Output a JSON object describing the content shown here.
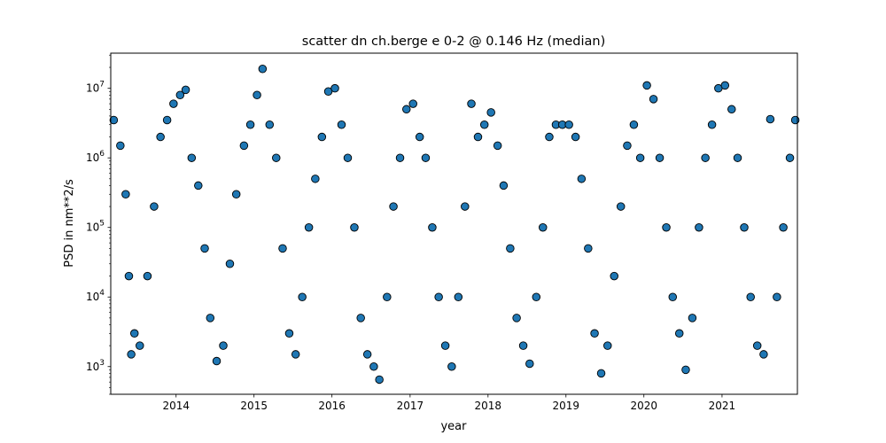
{
  "chart_data": {
    "type": "scatter",
    "title": "scatter dn ch.berge e 0-2 @ 0.146 Hz (median)",
    "xlabel": "year",
    "ylabel": "PSD in nm**2/s",
    "xlim": [
      "2013-03-01",
      "2021-12-20"
    ],
    "ylim": [
      400,
      32000000
    ],
    "yscale": "log",
    "grid": false,
    "legend": "none",
    "x_ticks": [
      "2014",
      "2015",
      "2016",
      "2017",
      "2018",
      "2019",
      "2020",
      "2021"
    ],
    "y_ticks": [
      {
        "value": 1000,
        "base": "10",
        "exp": "3"
      },
      {
        "value": 10000,
        "base": "10",
        "exp": "4"
      },
      {
        "value": 100000,
        "base": "10",
        "exp": "5"
      },
      {
        "value": 1000000,
        "base": "10",
        "exp": "6"
      },
      {
        "value": 10000000,
        "base": "10",
        "exp": "7"
      }
    ],
    "marker_color": "#1f77b4",
    "marker_edge_color": "#000000",
    "series": [
      {
        "points": [
          [
            "2013-03-15",
            3500000.0
          ],
          [
            "2013-04-15",
            1500000.0
          ],
          [
            "2013-05-10",
            300000.0
          ],
          [
            "2013-05-25",
            20000.0
          ],
          [
            "2013-06-05",
            1500.0
          ],
          [
            "2013-06-20",
            3000.0
          ],
          [
            "2013-07-15",
            2000.0
          ],
          [
            "2013-08-20",
            20000.0
          ],
          [
            "2013-09-20",
            200000.0
          ],
          [
            "2013-10-20",
            2000000.0
          ],
          [
            "2013-11-20",
            3500000.0
          ],
          [
            "2013-12-20",
            6000000.0
          ],
          [
            "2014-01-20",
            8000000.0
          ],
          [
            "2014-02-15",
            9500000.0
          ],
          [
            "2014-03-15",
            1000000.0
          ],
          [
            "2014-04-15",
            400000.0
          ],
          [
            "2014-05-15",
            50000.0
          ],
          [
            "2014-06-10",
            5000.0
          ],
          [
            "2014-07-10",
            1200.0
          ],
          [
            "2014-08-10",
            2000.0
          ],
          [
            "2014-09-10",
            30000.0
          ],
          [
            "2014-10-10",
            300000.0
          ],
          [
            "2014-11-15",
            1500000.0
          ],
          [
            "2014-12-15",
            3000000.0
          ],
          [
            "2015-01-15",
            8000000.0
          ],
          [
            "2015-02-10",
            19000000.0
          ],
          [
            "2015-03-15",
            3000000.0
          ],
          [
            "2015-04-15",
            1000000.0
          ],
          [
            "2015-05-15",
            50000.0
          ],
          [
            "2015-06-15",
            3000.0
          ],
          [
            "2015-07-15",
            1500.0
          ],
          [
            "2015-08-15",
            10000.0
          ],
          [
            "2015-09-15",
            100000.0
          ],
          [
            "2015-10-15",
            500000.0
          ],
          [
            "2015-11-15",
            2000000.0
          ],
          [
            "2015-12-15",
            9000000.0
          ],
          [
            "2016-01-15",
            10000000.0
          ],
          [
            "2016-02-15",
            3000000.0
          ],
          [
            "2016-03-15",
            1000000.0
          ],
          [
            "2016-04-15",
            100000.0
          ],
          [
            "2016-05-15",
            5000.0
          ],
          [
            "2016-06-15",
            1500.0
          ],
          [
            "2016-07-15",
            1000.0
          ],
          [
            "2016-08-10",
            650.0
          ],
          [
            "2016-09-15",
            10000.0
          ],
          [
            "2016-10-15",
            200000.0
          ],
          [
            "2016-11-15",
            1000000.0
          ],
          [
            "2016-12-15",
            5000000.0
          ],
          [
            "2017-01-15",
            6000000.0
          ],
          [
            "2017-02-15",
            2000000.0
          ],
          [
            "2017-03-15",
            1000000.0
          ],
          [
            "2017-04-15",
            100000.0
          ],
          [
            "2017-05-15",
            10000.0
          ],
          [
            "2017-06-15",
            2000.0
          ],
          [
            "2017-07-15",
            1000.0
          ],
          [
            "2017-08-15",
            10000.0
          ],
          [
            "2017-09-15",
            200000.0
          ],
          [
            "2017-10-15",
            6000000.0
          ],
          [
            "2017-11-15",
            2000000.0
          ],
          [
            "2017-12-15",
            3000000.0
          ],
          [
            "2018-01-15",
            4500000.0
          ],
          [
            "2018-02-15",
            1500000.0
          ],
          [
            "2018-03-15",
            400000.0
          ],
          [
            "2018-04-15",
            50000.0
          ],
          [
            "2018-05-15",
            5000.0
          ],
          [
            "2018-06-15",
            2000.0
          ],
          [
            "2018-07-15",
            1100.0
          ],
          [
            "2018-08-15",
            10000.0
          ],
          [
            "2018-09-15",
            100000.0
          ],
          [
            "2018-10-15",
            2000000.0
          ],
          [
            "2018-11-15",
            3000000.0
          ],
          [
            "2018-12-15",
            3000000.0
          ],
          [
            "2019-01-15",
            3000000.0
          ],
          [
            "2019-02-15",
            2000000.0
          ],
          [
            "2019-03-15",
            500000.0
          ],
          [
            "2019-04-15",
            50000.0
          ],
          [
            "2019-05-15",
            3000.0
          ],
          [
            "2019-06-15",
            800.0
          ],
          [
            "2019-07-15",
            2000.0
          ],
          [
            "2019-08-15",
            20000.0
          ],
          [
            "2019-09-15",
            200000.0
          ],
          [
            "2019-10-15",
            1500000.0
          ],
          [
            "2019-11-15",
            3000000.0
          ],
          [
            "2019-12-15",
            1000000.0
          ],
          [
            "2020-01-15",
            11000000.0
          ],
          [
            "2020-02-15",
            7000000.0
          ],
          [
            "2020-03-15",
            1000000.0
          ],
          [
            "2020-04-15",
            100000.0
          ],
          [
            "2020-05-15",
            10000.0
          ],
          [
            "2020-06-15",
            3000.0
          ],
          [
            "2020-07-15",
            900.0
          ],
          [
            "2020-08-15",
            5000.0
          ],
          [
            "2020-09-15",
            100000.0
          ],
          [
            "2020-10-15",
            1000000.0
          ],
          [
            "2020-11-15",
            3000000.0
          ],
          [
            "2020-12-15",
            10000000.0
          ],
          [
            "2021-01-15",
            11000000.0
          ],
          [
            "2021-02-15",
            5000000.0
          ],
          [
            "2021-03-15",
            1000000.0
          ],
          [
            "2021-04-15",
            100000.0
          ],
          [
            "2021-05-15",
            10000.0
          ],
          [
            "2021-06-15",
            2000.0
          ],
          [
            "2021-07-15",
            1500.0
          ],
          [
            "2021-08-15",
            3600000.0
          ],
          [
            "2021-09-15",
            10000.0
          ],
          [
            "2021-10-15",
            100000.0
          ],
          [
            "2021-11-15",
            1000000.0
          ],
          [
            "2021-12-10",
            3500000.0
          ]
        ]
      }
    ]
  }
}
